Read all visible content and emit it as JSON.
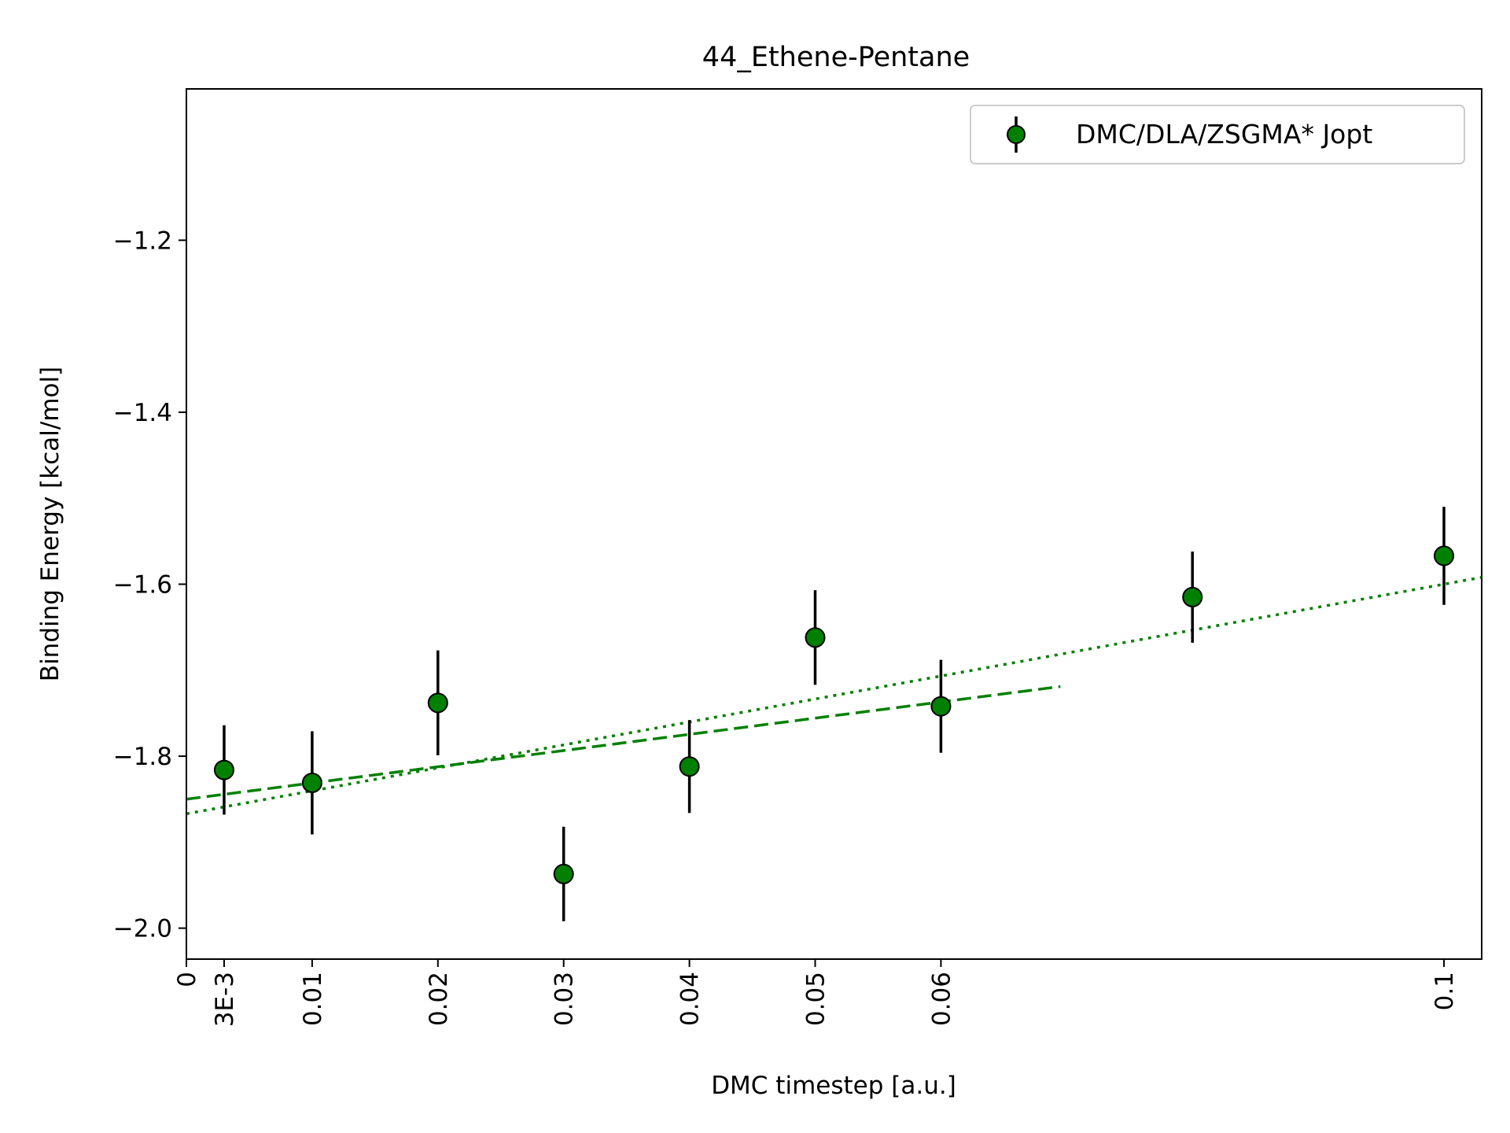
{
  "chart_data": {
    "type": "scatter",
    "title": "44_Ethene-Pentane",
    "xlabel": "DMC timestep [a.u.]",
    "ylabel": "Binding Energy [kcal/mol]",
    "xlim": [
      0,
      0.103
    ],
    "ylim": [
      -2.036,
      -1.024
    ],
    "x_ticks": [
      {
        "value": 0,
        "label": "0"
      },
      {
        "value": 0.003,
        "label": "3E-3"
      },
      {
        "value": 0.01,
        "label": "0.01"
      },
      {
        "value": 0.02,
        "label": "0.02"
      },
      {
        "value": 0.03,
        "label": "0.03"
      },
      {
        "value": 0.04,
        "label": "0.04"
      },
      {
        "value": 0.05,
        "label": "0.05"
      },
      {
        "value": 0.06,
        "label": "0.06"
      },
      {
        "value": 0.1,
        "label": "0.1"
      }
    ],
    "y_ticks": [
      {
        "value": -1.2,
        "label": "−1.2"
      },
      {
        "value": -1.4,
        "label": "−1.4"
      },
      {
        "value": -1.6,
        "label": "−1.6"
      },
      {
        "value": -1.8,
        "label": "−1.8"
      },
      {
        "value": -2.0,
        "label": "−2.0"
      }
    ],
    "grid": false,
    "legend_position": "top-right",
    "series": [
      {
        "name": "DMC/DLA/ZSGMA* Jopt",
        "color": "#008000",
        "marker_edge": "#000000",
        "errorbar_color": "#000000",
        "points": [
          {
            "x": 0.003,
            "y": -1.816,
            "err": 0.052
          },
          {
            "x": 0.01,
            "y": -1.831,
            "err": 0.06
          },
          {
            "x": 0.02,
            "y": -1.738,
            "err": 0.061
          },
          {
            "x": 0.03,
            "y": -1.937,
            "err": 0.055
          },
          {
            "x": 0.04,
            "y": -1.812,
            "err": 0.054
          },
          {
            "x": 0.05,
            "y": -1.662,
            "err": 0.055
          },
          {
            "x": 0.06,
            "y": -1.742,
            "err": 0.054
          },
          {
            "x": 0.08,
            "y": -1.615,
            "err": 0.053
          },
          {
            "x": 0.1,
            "y": -1.567,
            "err": 0.057
          }
        ]
      }
    ],
    "fit_lines": [
      {
        "style": "dashed",
        "color": "#008000",
        "x": [
          0,
          0.0695
        ],
        "y": [
          -1.85,
          -1.719
        ]
      },
      {
        "style": "dotted",
        "color": "#008000",
        "x": [
          0,
          0.103
        ],
        "y": [
          -1.867,
          -1.592
        ]
      }
    ]
  }
}
